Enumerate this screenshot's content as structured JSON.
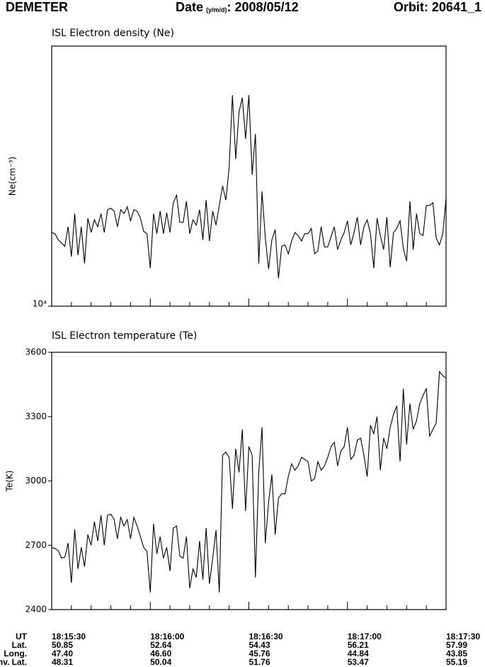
{
  "header": {
    "title": "DEMETER",
    "date_label": "Date",
    "date_format": "(y/m/d)",
    "date_value": ": 2008/05/12",
    "orbit": "Orbit: 20641_1"
  },
  "chart_data": [
    {
      "type": "line",
      "title": "ISL Electron density (Ne)",
      "y_label": "Ne(cm⁻³)",
      "log_y": true,
      "color": "#000000",
      "xlim": [
        "18:15:30",
        "18:17:30"
      ],
      "xticks": [
        "18:15:30",
        "18:16:00",
        "18:16:30",
        "18:17:00",
        "18:17:30"
      ],
      "ylim": [
        10000,
        100000
      ],
      "yticks": [
        {
          "value": 10000,
          "label": "10⁴"
        }
      ],
      "x": [
        "18:15:30",
        "18:15:31",
        "18:15:32",
        "18:15:33",
        "18:15:34",
        "18:15:35",
        "18:15:36",
        "18:15:37",
        "18:15:38",
        "18:15:39",
        "18:15:40",
        "18:15:41",
        "18:15:42",
        "18:15:43",
        "18:15:44",
        "18:15:45",
        "18:15:46",
        "18:15:47",
        "18:15:48",
        "18:15:49",
        "18:15:50",
        "18:15:51",
        "18:15:52",
        "18:15:53",
        "18:15:54",
        "18:15:55",
        "18:15:56",
        "18:15:57",
        "18:15:58",
        "18:15:59",
        "18:16:00",
        "18:16:01",
        "18:16:02",
        "18:16:03",
        "18:16:04",
        "18:16:05",
        "18:16:06",
        "18:16:07",
        "18:16:08",
        "18:16:09",
        "18:16:10",
        "18:16:11",
        "18:16:12",
        "18:16:13",
        "18:16:14",
        "18:16:15",
        "18:16:16",
        "18:16:17",
        "18:16:18",
        "18:16:19",
        "18:16:20",
        "18:16:21",
        "18:16:22",
        "18:16:23",
        "18:16:24",
        "18:16:25",
        "18:16:26",
        "18:16:27",
        "18:16:28",
        "18:16:29",
        "18:16:30",
        "18:16:31",
        "18:16:32",
        "18:16:33",
        "18:16:34",
        "18:16:35",
        "18:16:36",
        "18:16:37",
        "18:16:38",
        "18:16:39",
        "18:16:40",
        "18:16:41",
        "18:16:42",
        "18:16:43",
        "18:16:44",
        "18:16:45",
        "18:16:46",
        "18:16:47",
        "18:16:48",
        "18:16:49",
        "18:16:50",
        "18:16:51",
        "18:16:52",
        "18:16:53",
        "18:16:54",
        "18:16:55",
        "18:16:56",
        "18:16:57",
        "18:16:58",
        "18:16:59",
        "18:17:00",
        "18:17:01",
        "18:17:02",
        "18:17:03",
        "18:17:04",
        "18:17:05",
        "18:17:06",
        "18:17:07",
        "18:17:08",
        "18:17:09",
        "18:17:10",
        "18:17:11",
        "18:17:12",
        "18:17:13",
        "18:17:14",
        "18:17:15",
        "18:17:16",
        "18:17:17",
        "18:17:18",
        "18:17:19",
        "18:17:20",
        "18:17:21",
        "18:17:22",
        "18:17:23",
        "18:17:24",
        "18:17:25",
        "18:17:26",
        "18:17:27",
        "18:17:28",
        "18:17:29",
        "18:17:30"
      ],
      "values": [
        19200,
        19000,
        18000,
        17500,
        17000,
        20200,
        15500,
        22700,
        15700,
        20200,
        14600,
        21800,
        19200,
        21500,
        20200,
        22700,
        19200,
        23500,
        23800,
        23200,
        20200,
        23500,
        22700,
        24100,
        21300,
        23500,
        23200,
        21800,
        19400,
        19000,
        14000,
        22700,
        19000,
        23200,
        19000,
        22900,
        19200,
        25000,
        26700,
        21000,
        21000,
        25300,
        19000,
        21500,
        20500,
        23500,
        18000,
        25600,
        17800,
        23200,
        20500,
        24400,
        29000,
        25600,
        34100,
        64800,
        36800,
        55800,
        63300,
        44000,
        64800,
        32000,
        46000,
        14600,
        27600,
        18300,
        13900,
        18000,
        19700,
        12800,
        17000,
        17200,
        15900,
        17800,
        19200,
        18700,
        17800,
        19000,
        19000,
        19900,
        15900,
        16300,
        20200,
        16900,
        16900,
        18500,
        20200,
        16500,
        18000,
        19200,
        21300,
        17200,
        19200,
        22000,
        17200,
        20200,
        21500,
        19000,
        14000,
        21800,
        18700,
        16500,
        22000,
        14100,
        19200,
        19900,
        21300,
        16700,
        14900,
        25300,
        16500,
        22700,
        19000,
        18700,
        24400,
        24400,
        25000,
        18300,
        17200,
        19000,
        26000
      ]
    },
    {
      "type": "line",
      "title": "ISL Electron temperature (Te)",
      "y_label": "Te(K)",
      "log_y": false,
      "color": "#000000",
      "xlim": [
        "18:15:30",
        "18:17:30"
      ],
      "xticks": [
        "18:15:30",
        "18:16:00",
        "18:16:30",
        "18:17:00",
        "18:17:30"
      ],
      "xtick_title": "UT",
      "xtick_rows": [
        {
          "label": "Lat.",
          "values": [
            "50.85",
            "52.64",
            "54.43",
            "56.21",
            "57.99"
          ]
        },
        {
          "label": "Long.",
          "values": [
            "47.40",
            "46.60",
            "45.76",
            "44.84",
            "43.85"
          ]
        },
        {
          "label": "Inv. Lat.",
          "values": [
            "48.31",
            "50.04",
            "51.76",
            "53.47",
            "55.19"
          ]
        }
      ],
      "ylim": [
        2400,
        3600
      ],
      "yticks": [
        2400,
        2700,
        3000,
        3300,
        3600
      ],
      "x": [
        "18:15:30",
        "18:15:31",
        "18:15:32",
        "18:15:33",
        "18:15:34",
        "18:15:35",
        "18:15:36",
        "18:15:37",
        "18:15:38",
        "18:15:39",
        "18:15:40",
        "18:15:41",
        "18:15:42",
        "18:15:43",
        "18:15:44",
        "18:15:45",
        "18:15:46",
        "18:15:47",
        "18:15:48",
        "18:15:49",
        "18:15:50",
        "18:15:51",
        "18:15:52",
        "18:15:53",
        "18:15:54",
        "18:15:55",
        "18:15:56",
        "18:15:57",
        "18:15:58",
        "18:15:59",
        "18:16:00",
        "18:16:01",
        "18:16:02",
        "18:16:03",
        "18:16:04",
        "18:16:05",
        "18:16:06",
        "18:16:07",
        "18:16:08",
        "18:16:09",
        "18:16:10",
        "18:16:11",
        "18:16:12",
        "18:16:13",
        "18:16:14",
        "18:16:15",
        "18:16:16",
        "18:16:17",
        "18:16:18",
        "18:16:19",
        "18:16:20",
        "18:16:21",
        "18:16:22",
        "18:16:23",
        "18:16:24",
        "18:16:25",
        "18:16:26",
        "18:16:27",
        "18:16:28",
        "18:16:29",
        "18:16:30",
        "18:16:31",
        "18:16:32",
        "18:16:33",
        "18:16:34",
        "18:16:35",
        "18:16:36",
        "18:16:37",
        "18:16:38",
        "18:16:39",
        "18:16:40",
        "18:16:41",
        "18:16:42",
        "18:16:43",
        "18:16:44",
        "18:16:45",
        "18:16:46",
        "18:16:47",
        "18:16:48",
        "18:16:49",
        "18:16:50",
        "18:16:51",
        "18:16:52",
        "18:16:53",
        "18:16:54",
        "18:16:55",
        "18:16:56",
        "18:16:57",
        "18:16:58",
        "18:16:59",
        "18:17:00",
        "18:17:01",
        "18:17:02",
        "18:17:03",
        "18:17:04",
        "18:17:05",
        "18:17:06",
        "18:17:07",
        "18:17:08",
        "18:17:09",
        "18:17:10",
        "18:17:11",
        "18:17:12",
        "18:17:13",
        "18:17:14",
        "18:17:15",
        "18:17:16",
        "18:17:17",
        "18:17:18",
        "18:17:19",
        "18:17:20",
        "18:17:21",
        "18:17:22",
        "18:17:23",
        "18:17:24",
        "18:17:25",
        "18:17:26",
        "18:17:27",
        "18:17:28",
        "18:17:29",
        "18:17:30"
      ],
      "values": [
        2690,
        2685,
        2675,
        2640,
        2645,
        2710,
        2525,
        2775,
        2590,
        2690,
        2600,
        2750,
        2700,
        2810,
        2720,
        2840,
        2700,
        2840,
        2845,
        2820,
        2730,
        2830,
        2790,
        2820,
        2730,
        2830,
        2790,
        2740,
        2690,
        2670,
        2480,
        2800,
        2660,
        2740,
        2640,
        2690,
        2580,
        2780,
        2790,
        2650,
        2640,
        2740,
        2500,
        2590,
        2550,
        2720,
        2540,
        2780,
        2520,
        2640,
        2770,
        2480,
        3120,
        3135,
        3110,
        2870,
        3150,
        3040,
        3240,
        2860,
        3160,
        3120,
        2550,
        3040,
        3250,
        2710,
        2900,
        3030,
        2750,
        2920,
        2940,
        2940,
        3020,
        3080,
        3050,
        3070,
        3110,
        3100,
        3090,
        3000,
        3010,
        3090,
        3050,
        3070,
        3110,
        3160,
        3180,
        3070,
        3140,
        3160,
        3250,
        3100,
        3120,
        3190,
        3200,
        3120,
        3020,
        3260,
        3220,
        3300,
        3050,
        3200,
        3150,
        3250,
        3310,
        3350,
        3090,
        3430,
        3170,
        3360,
        3240,
        3280,
        3360,
        3400,
        3430,
        3210,
        3240,
        3270,
        3510,
        3490,
        3480
      ]
    }
  ]
}
